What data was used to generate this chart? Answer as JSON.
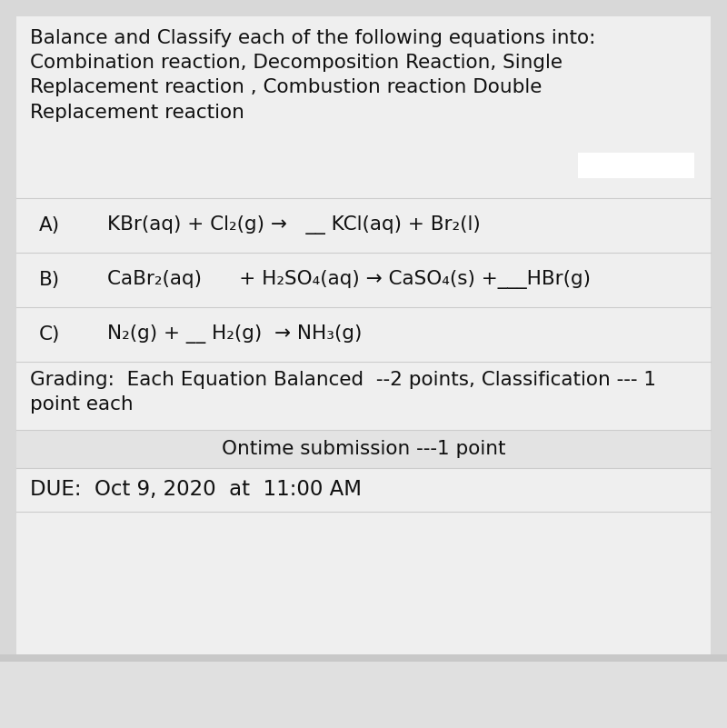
{
  "bg_outer": "#d8d8d8",
  "bg_card": "#efefef",
  "bg_white": "#ffffff",
  "bg_ontime": "#e3e3e3",
  "bg_bottom_strip": "#c8c8c8",
  "bg_below": "#f5f5f5",
  "text_color": "#111111",
  "sep_color": "#cccccc",
  "title_text": "Balance and Classify each of the following equations into:\nCombination reaction, Decomposition Reaction, Single\nReplacement reaction , Combustion reaction Double\nReplacement reaction",
  "eq_A": "KBr(aq) + Cl₂(g) →   __ KCl(aq) + Br₂(l)",
  "eq_B": "CaBr₂(aq)      + H₂SO₄(aq) → CaSO₄(s) +___HBr(g)",
  "eq_C": "N₂(g) + __ H₂(g)  → NH₃(g)",
  "grading_text": "Grading:  Each Equation Balanced  --2 points, Classification --- 1\npoint each",
  "ontime_text": "Ontime submission ---1 point",
  "due_text": "DUE:  Oct 9, 2020  at  11:00 AM",
  "font_size": 15.5,
  "label_indent": 25,
  "eq_indent": 100
}
